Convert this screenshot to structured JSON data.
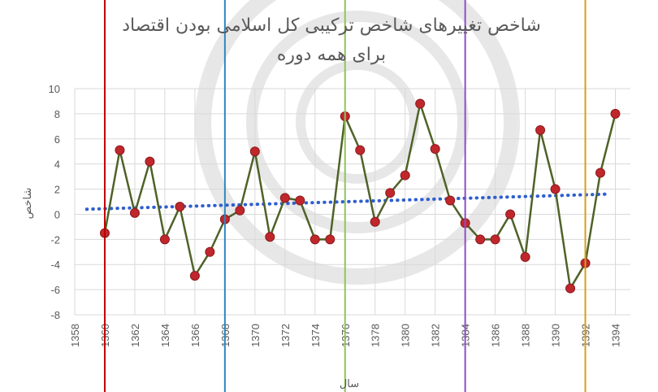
{
  "chart_data": {
    "type": "line",
    "title_line1": "شاخص تغییرهای شاخص ترکیبی کل اسلامی بودن اقتصاد",
    "title_line2": "برای همه دوره",
    "xlabel": "سال",
    "ylabel": "شاخص",
    "xlim": [
      1358,
      1395
    ],
    "ylim": [
      -8,
      10
    ],
    "x_ticks": [
      1358,
      1360,
      1362,
      1364,
      1366,
      1368,
      1370,
      1372,
      1374,
      1376,
      1378,
      1380,
      1382,
      1384,
      1386,
      1388,
      1390,
      1392,
      1394
    ],
    "y_ticks": [
      -8,
      -6,
      -4,
      -2,
      0,
      2,
      4,
      6,
      8,
      10
    ],
    "grid": true,
    "series": [
      {
        "line_color": "#4f6228",
        "marker_color": "#c0272d",
        "x": [
          1360,
          1361,
          1362,
          1363,
          1364,
          1365,
          1366,
          1367,
          1368,
          1369,
          1370,
          1371,
          1372,
          1373,
          1374,
          1375,
          1376,
          1377,
          1378,
          1379,
          1380,
          1381,
          1382,
          1383,
          1384,
          1385,
          1386,
          1387,
          1388,
          1389,
          1390,
          1391,
          1392,
          1393,
          1394
        ],
        "y": [
          -1.5,
          5.1,
          0.1,
          4.2,
          -2.0,
          0.6,
          -4.9,
          -3.0,
          -0.4,
          0.3,
          5.0,
          -1.8,
          1.3,
          1.1,
          -2.0,
          -2.0,
          7.8,
          5.1,
          -0.6,
          1.7,
          3.1,
          8.8,
          5.2,
          1.1,
          -0.7,
          -2.0,
          -2.0,
          0.0,
          -3.4,
          6.7,
          2.0,
          -5.9,
          -3.9,
          3.3,
          8.0
        ]
      }
    ],
    "trendline": {
      "color": "#2f5fcf",
      "style": "dotted",
      "x": [
        1358.8,
        1393.4
      ],
      "y": [
        0.4,
        1.6
      ]
    },
    "vertical_lines": [
      {
        "x": 1360,
        "color": "#c00000"
      },
      {
        "x": 1368,
        "color": "#2e86c1"
      },
      {
        "x": 1376,
        "color": "#8fc55a"
      },
      {
        "x": 1384,
        "color": "#8e4ec6"
      },
      {
        "x": 1392,
        "color": "#d4a017"
      }
    ]
  }
}
